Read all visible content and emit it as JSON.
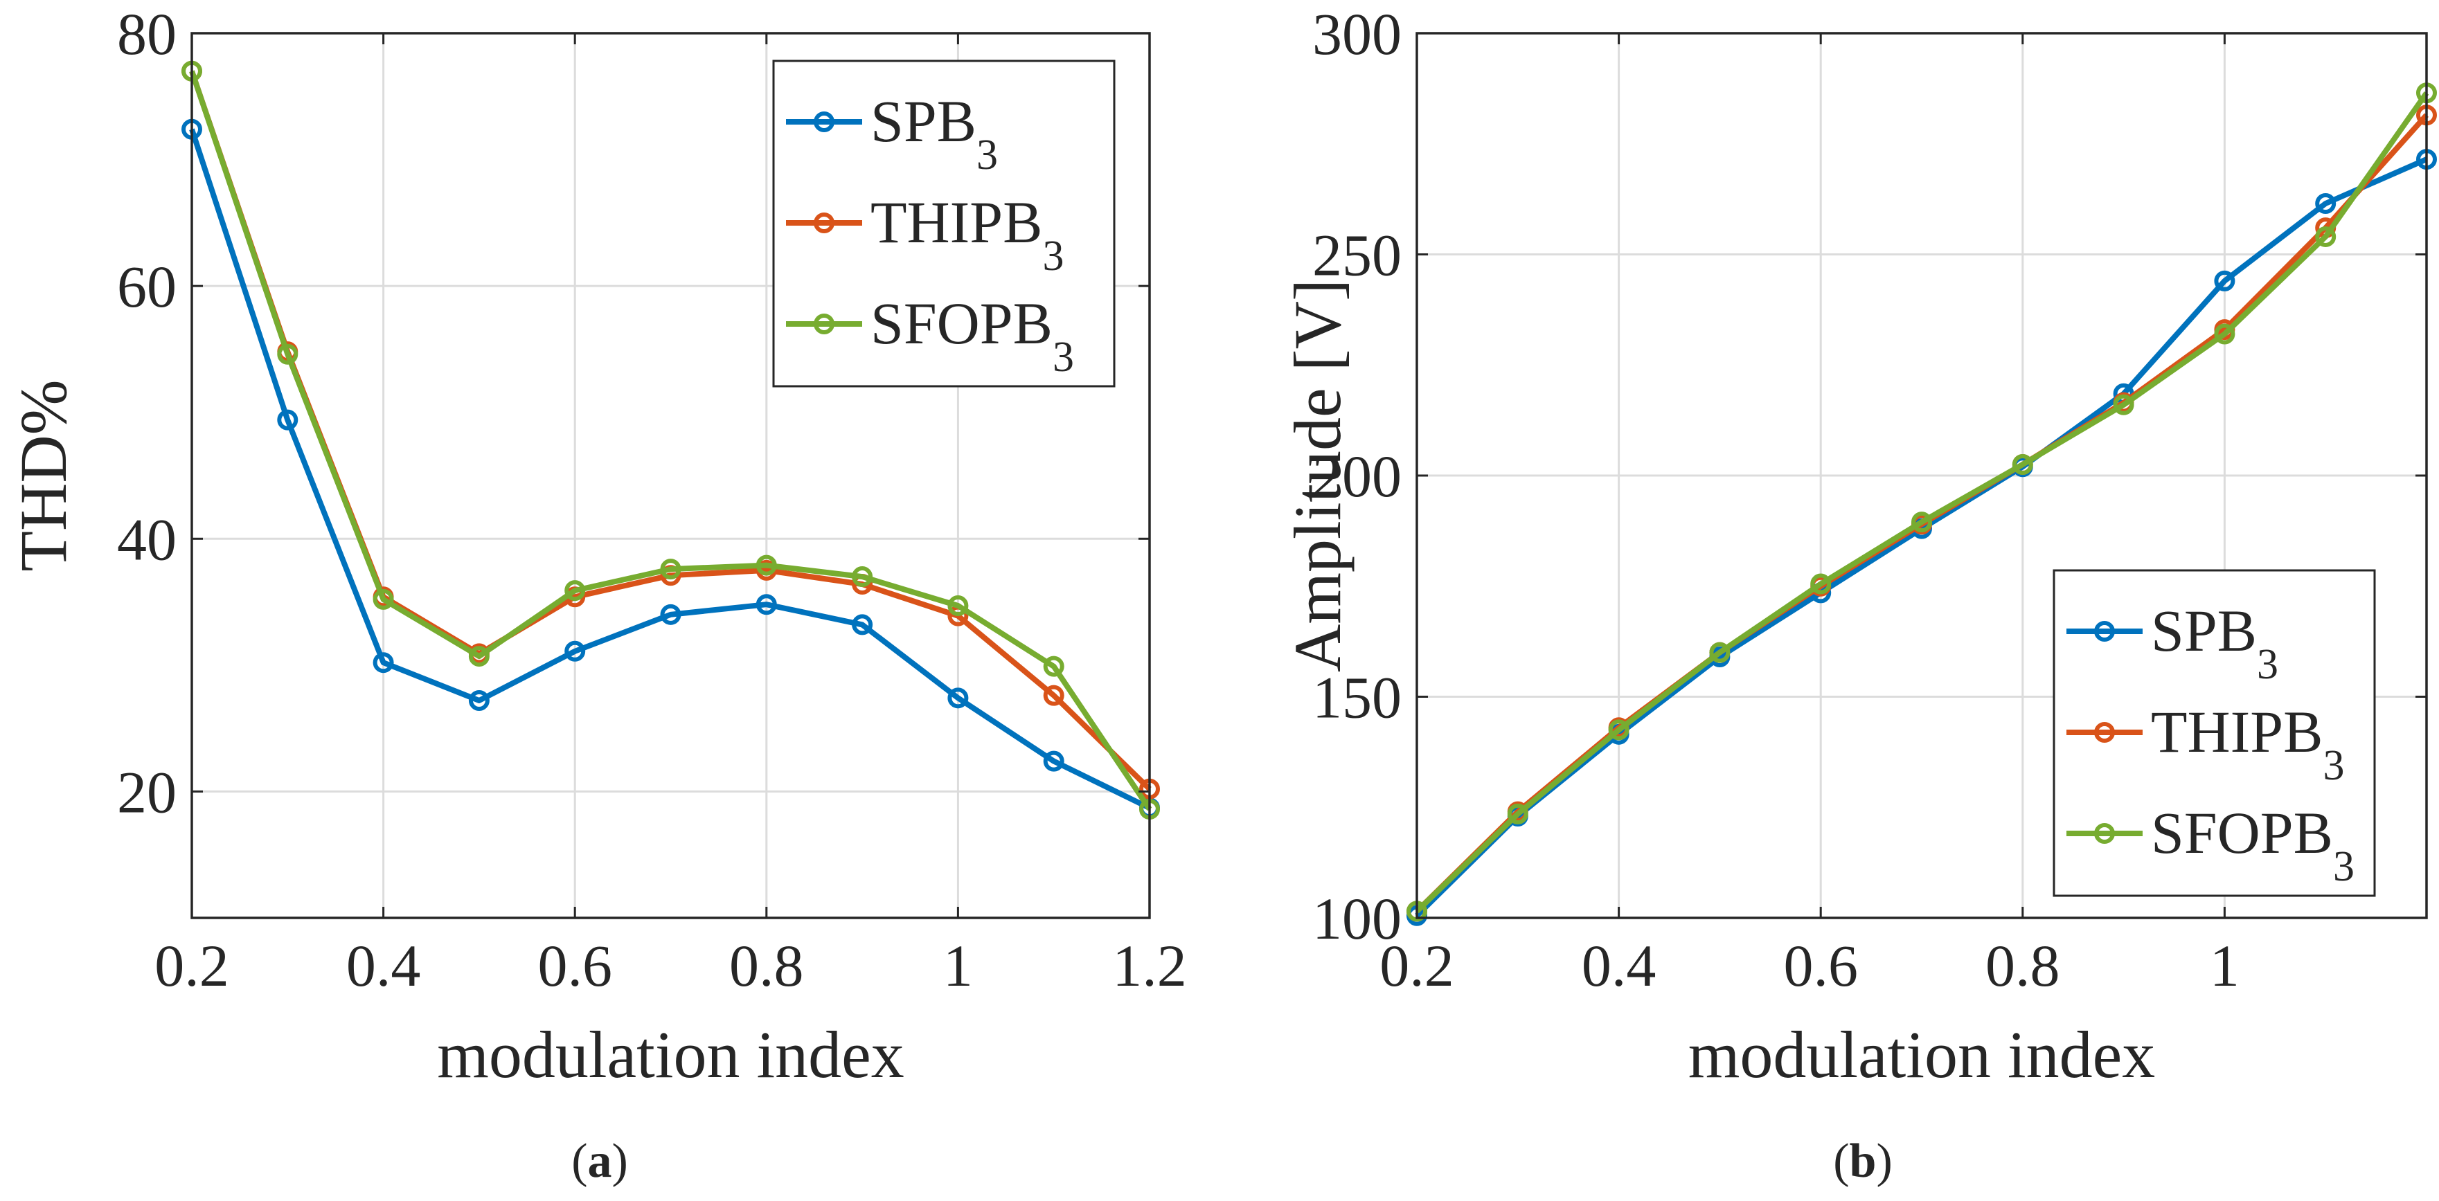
{
  "chart_data": [
    {
      "type": "line",
      "caption": "a",
      "xlabel": "modulation index",
      "ylabel": "THD%",
      "xlim": [
        0.2,
        1.2
      ],
      "ylim": [
        10,
        80
      ],
      "xticks": [
        0.2,
        0.4,
        0.6,
        0.8,
        1.0,
        1.2
      ],
      "xtick_labels": [
        "0.2",
        "0.4",
        "0.6",
        "0.8",
        "1",
        "1.2"
      ],
      "yticks": [
        20,
        40,
        60,
        80
      ],
      "ytick_labels": [
        "20",
        "40",
        "60",
        "80"
      ],
      "grid": true,
      "legend_position": "top-right",
      "x": [
        0.2,
        0.3,
        0.4,
        0.5,
        0.6,
        0.7,
        0.8,
        0.9,
        1.0,
        1.1,
        1.2
      ],
      "series": [
        {
          "name": "SPB",
          "name_sub": "3",
          "color": "#0072BD",
          "values": [
            72.4,
            49.4,
            30.2,
            27.2,
            31.1,
            34.0,
            34.8,
            33.2,
            27.4,
            22.4,
            18.7
          ]
        },
        {
          "name": "THIPB",
          "name_sub": "3",
          "color": "#D95319",
          "values": [
            77.0,
            54.8,
            35.4,
            30.9,
            35.4,
            37.1,
            37.5,
            36.4,
            33.9,
            27.6,
            20.2
          ]
        },
        {
          "name": "SFOPB",
          "name_sub": "3",
          "color": "#77AC30",
          "values": [
            77.0,
            54.6,
            35.2,
            30.7,
            35.9,
            37.6,
            37.9,
            37.0,
            34.7,
            29.9,
            18.6
          ]
        }
      ]
    },
    {
      "type": "line",
      "caption": "b",
      "xlabel": "modulation index",
      "ylabel": "Amplitude [V]",
      "xlim": [
        0.2,
        1.2
      ],
      "ylim": [
        100,
        300
      ],
      "xticks": [
        0.2,
        0.4,
        0.6,
        0.8,
        1.0
      ],
      "xtick_labels": [
        "0.2",
        "0.4",
        "0.6",
        "0.8",
        "1"
      ],
      "yticks": [
        100,
        150,
        200,
        250,
        300
      ],
      "ytick_labels": [
        "100",
        "150",
        "200",
        "250",
        "300"
      ],
      "grid": true,
      "legend_position": "bottom-right",
      "x": [
        0.2,
        0.3,
        0.4,
        0.5,
        0.6,
        0.7,
        0.8,
        0.9,
        1.0,
        1.1,
        1.2
      ],
      "series": [
        {
          "name": "SPB",
          "name_sub": "3",
          "color": "#0072BD",
          "values": [
            100.5,
            123.0,
            141.5,
            159.0,
            173.5,
            188.0,
            202.0,
            218.5,
            244.0,
            261.5,
            271.5
          ]
        },
        {
          "name": "THIPB",
          "name_sub": "3",
          "color": "#D95319",
          "values": [
            101.5,
            124.0,
            143.0,
            160.0,
            175.0,
            189.0,
            202.5,
            216.5,
            233.0,
            256.0,
            281.5
          ]
        },
        {
          "name": "SFOPB",
          "name_sub": "3",
          "color": "#77AC30",
          "values": [
            101.5,
            123.5,
            142.5,
            160.0,
            175.5,
            189.5,
            202.5,
            216.0,
            232.0,
            254.0,
            286.5
          ]
        }
      ]
    }
  ]
}
